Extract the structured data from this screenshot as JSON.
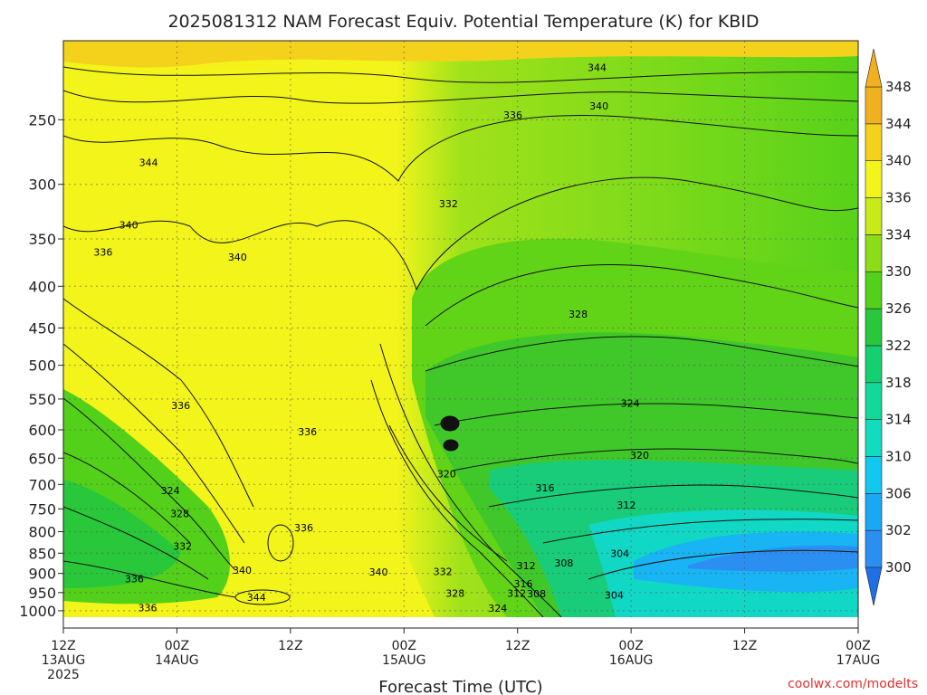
{
  "chart_data": {
    "type": "heatmap",
    "title": "2025081312 NAM Forecast Equiv. Potential Temperature (K) for KBID",
    "xlabel": "Forecast Time (UTC)",
    "ylabel": "",
    "credit": "coolwx.com/modelts",
    "y_scale": "pressure (log)",
    "y_ticks": [
      250,
      300,
      350,
      400,
      450,
      500,
      550,
      600,
      650,
      700,
      750,
      800,
      850,
      900,
      950,
      1000
    ],
    "y_tick_labels": [
      "250",
      "300",
      "350",
      "400",
      "450",
      "500",
      "550",
      "600",
      "650",
      "700",
      "750",
      "800",
      "850",
      "900",
      "950",
      "1000"
    ],
    "x_ticks": [
      {
        "hour": 0,
        "line1": "12Z",
        "line2": "13AUG",
        "line3": "2025"
      },
      {
        "hour": 12,
        "line1": "00Z",
        "line2": "14AUG",
        "line3": ""
      },
      {
        "hour": 24,
        "line1": "12Z",
        "line2": "",
        "line3": ""
      },
      {
        "hour": 36,
        "line1": "00Z",
        "line2": "15AUG",
        "line3": ""
      },
      {
        "hour": 48,
        "line1": "12Z",
        "line2": "",
        "line3": ""
      },
      {
        "hour": 60,
        "line1": "00Z",
        "line2": "16AUG",
        "line3": ""
      },
      {
        "hour": 72,
        "line1": "12Z",
        "line2": "",
        "line3": ""
      },
      {
        "hour": 84,
        "line1": "00Z",
        "line2": "17AUG",
        "line3": ""
      }
    ],
    "xlim": [
      0,
      84
    ],
    "ylim": [
      1050,
      200
    ],
    "grid": true,
    "colorbar": {
      "position": "right",
      "levels": [
        300,
        302,
        306,
        310,
        314,
        318,
        322,
        326,
        330,
        334,
        336,
        340,
        344,
        348
      ],
      "labels": [
        "300",
        "302",
        "306",
        "310",
        "314",
        "318",
        "322",
        "326",
        "330",
        "334",
        "336",
        "340",
        "344",
        "348"
      ],
      "colors": [
        "#1f6fe6",
        "#2b8ff2",
        "#1aa8f5",
        "#12c8f0",
        "#10dcc0",
        "#12d89a",
        "#14d070",
        "#28c83a",
        "#52d01a",
        "#8cdc1a",
        "#c8ea18",
        "#f2f41a",
        "#f4d21c",
        "#f0b020"
      ]
    },
    "contour_labels": [
      {
        "value": "344",
        "hour": 9.0,
        "p": 285
      },
      {
        "value": "340",
        "hour": 6.9,
        "p": 340
      },
      {
        "value": "336",
        "hour": 4.2,
        "p": 367
      },
      {
        "value": "340",
        "hour": 18.4,
        "p": 372
      },
      {
        "value": "344",
        "hour": 56.4,
        "p": 218
      },
      {
        "value": "340",
        "hour": 56.6,
        "p": 243
      },
      {
        "value": "336",
        "hour": 47.5,
        "p": 249
      },
      {
        "value": "332",
        "hour": 40.7,
        "p": 320
      },
      {
        "value": "328",
        "hour": 54.4,
        "p": 437
      },
      {
        "value": "324",
        "hour": 59.9,
        "p": 562
      },
      {
        "value": "336",
        "hour": 12.4,
        "p": 566
      },
      {
        "value": "336",
        "hour": 25.8,
        "p": 609
      },
      {
        "value": "320",
        "hour": 40.5,
        "p": 686
      },
      {
        "value": "320",
        "hour": 60.9,
        "p": 651
      },
      {
        "value": "316",
        "hour": 50.9,
        "p": 714
      },
      {
        "value": "312",
        "hour": 59.5,
        "p": 749
      },
      {
        "value": "324",
        "hour": 11.3,
        "p": 719
      },
      {
        "value": "328",
        "hour": 12.3,
        "p": 768
      },
      {
        "value": "332",
        "hour": 12.6,
        "p": 842
      },
      {
        "value": "336",
        "hour": 25.4,
        "p": 799
      },
      {
        "value": "336",
        "hour": 7.5,
        "p": 923
      },
      {
        "value": "340",
        "hour": 18.9,
        "p": 901
      },
      {
        "value": "344",
        "hour": 20.4,
        "p": 972
      },
      {
        "value": "336",
        "hour": 8.9,
        "p": 1002
      },
      {
        "value": "340",
        "hour": 33.3,
        "p": 905
      },
      {
        "value": "332",
        "hour": 40.1,
        "p": 904
      },
      {
        "value": "328",
        "hour": 41.4,
        "p": 961
      },
      {
        "value": "304",
        "hour": 58.8,
        "p": 859
      },
      {
        "value": "308",
        "hour": 52.9,
        "p": 883
      },
      {
        "value": "312",
        "hour": 48.9,
        "p": 889
      },
      {
        "value": "316",
        "hour": 48.6,
        "p": 936
      },
      {
        "value": "312",
        "hour": 47.9,
        "p": 961
      },
      {
        "value": "308",
        "hour": 50.0,
        "p": 963
      },
      {
        "value": "304",
        "hour": 58.2,
        "p": 966
      },
      {
        "value": "324",
        "hour": 45.9,
        "p": 1003
      }
    ]
  }
}
